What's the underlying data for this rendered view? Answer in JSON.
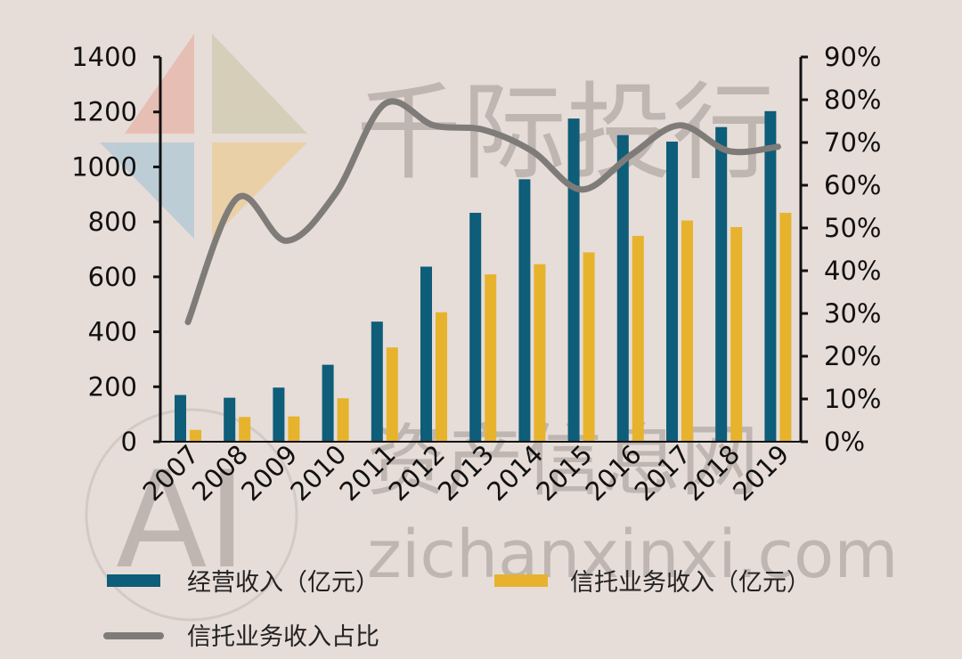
{
  "watermark": {
    "brand_text": "千际投行",
    "site_text": "资产信息网",
    "url_text": "zichanxinxi.com",
    "logo_letters": "AI"
  },
  "chart_data": {
    "type": "bar",
    "categories": [
      "2007",
      "2008",
      "2009",
      "2010",
      "2011",
      "2012",
      "2013",
      "2014",
      "2015",
      "2016",
      "2017",
      "2018",
      "2019"
    ],
    "series": [
      {
        "name": "经营收入（亿元）",
        "kind": "bar",
        "axis": "left",
        "color": "#0e5d79",
        "values": [
          170,
          160,
          197,
          280,
          437,
          637,
          833,
          955,
          1176,
          1116,
          1092,
          1145,
          1203
        ]
      },
      {
        "name": "信托业务收入（亿元）",
        "kind": "bar",
        "axis": "left",
        "color": "#e7b32d",
        "values": [
          43,
          90,
          92,
          158,
          343,
          471,
          609,
          646,
          689,
          749,
          805,
          781,
          833
        ]
      },
      {
        "name": "信托业务收入占比",
        "kind": "line",
        "axis": "right",
        "color": "#7f7b79",
        "values": [
          0.28,
          0.57,
          0.47,
          0.58,
          0.79,
          0.74,
          0.73,
          0.68,
          0.59,
          0.67,
          0.74,
          0.68,
          0.69
        ]
      }
    ],
    "y_left": {
      "min": 0,
      "max": 1400,
      "ticks": [
        "0",
        "200",
        "400",
        "600",
        "800",
        "1000",
        "1200",
        "1400"
      ]
    },
    "y_right": {
      "min": 0,
      "max": 0.9,
      "ticks": [
        "0%",
        "10%",
        "20%",
        "30%",
        "40%",
        "50%",
        "60%",
        "70%",
        "80%",
        "90%"
      ]
    },
    "grid": false,
    "legend_position": "bottom",
    "xlabel": "",
    "ylabel": ""
  }
}
